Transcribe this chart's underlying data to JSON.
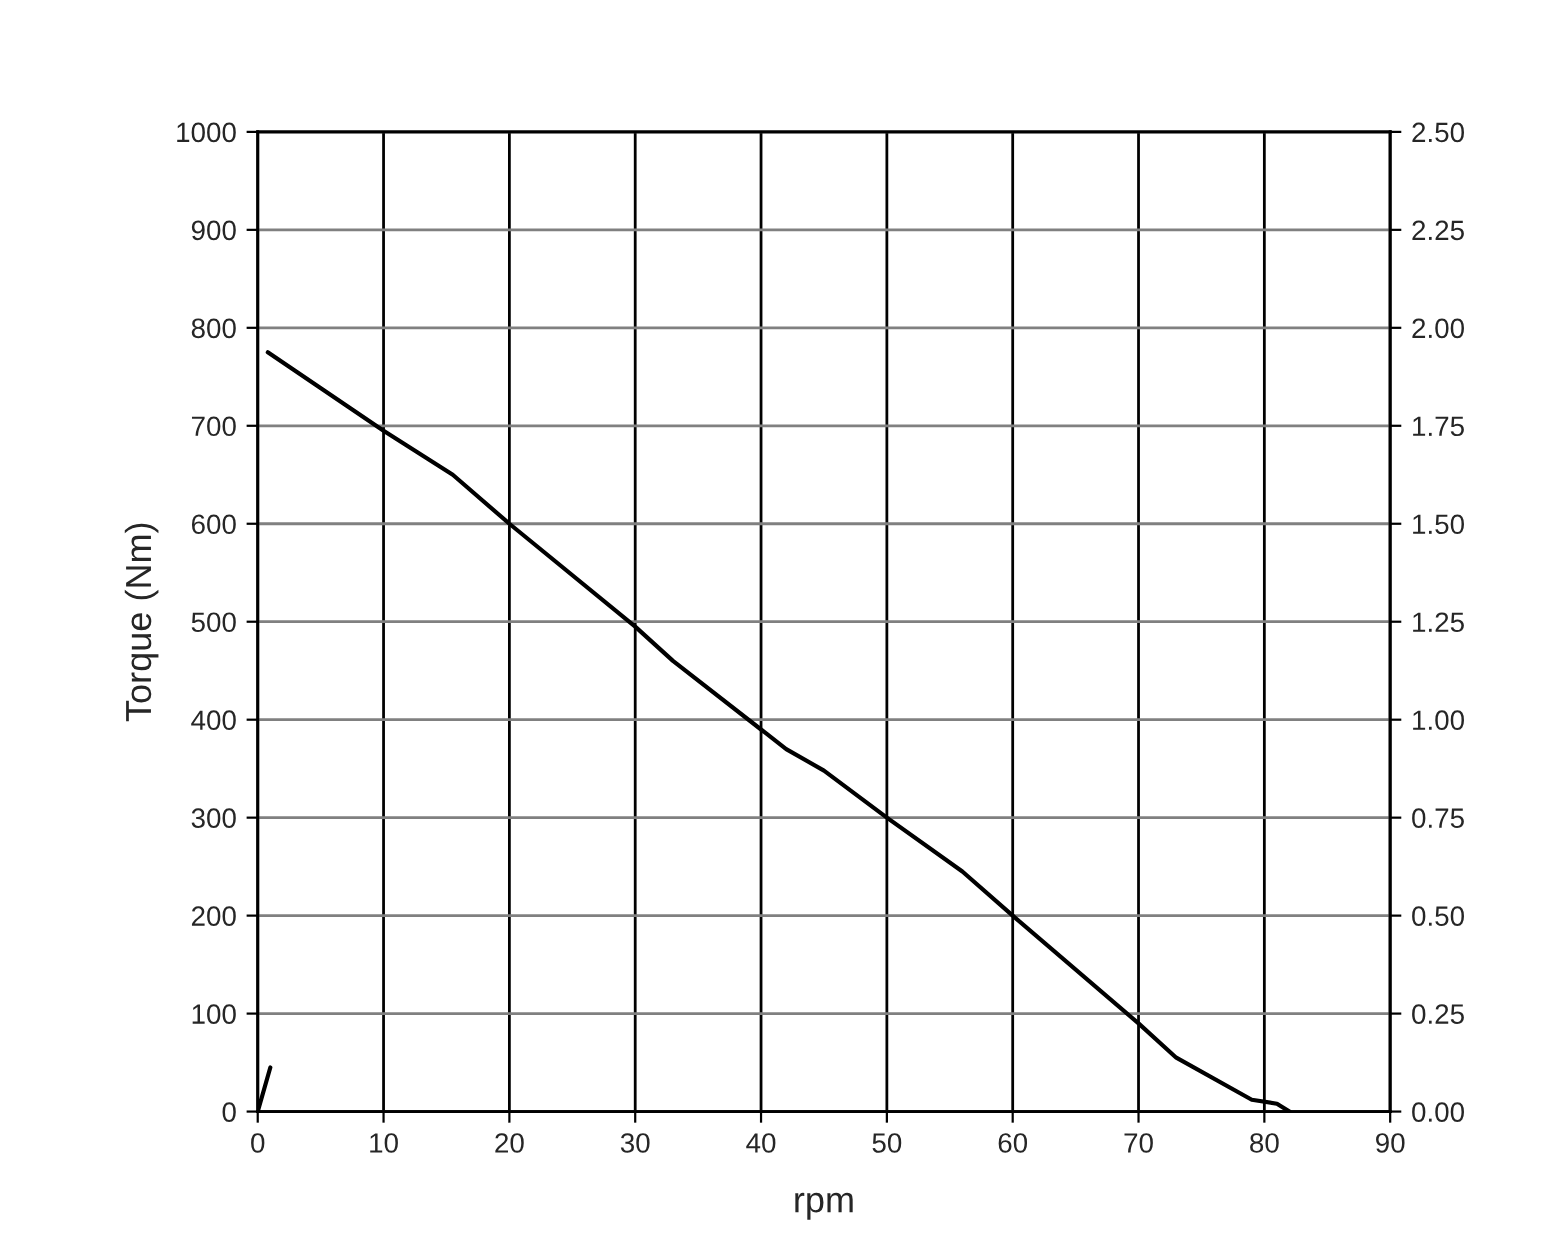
{
  "chart_data": {
    "type": "line",
    "xlabel": "rpm",
    "ylabel": "Torque (Nm)",
    "xlim": [
      0,
      90
    ],
    "xticks": [
      0,
      10,
      20,
      30,
      40,
      50,
      60,
      70,
      80,
      90
    ],
    "ylim": [
      0,
      1000
    ],
    "yticks": [
      0,
      100,
      200,
      300,
      400,
      500,
      600,
      700,
      800,
      900,
      1000
    ],
    "y2lim": [
      0,
      2.5
    ],
    "y2ticks": [
      {
        "value": 0,
        "label": "0.00"
      },
      {
        "value": 0.25,
        "label": "0.25"
      },
      {
        "value": 0.5,
        "label": "0.50"
      },
      {
        "value": 0.75,
        "label": "0.75"
      },
      {
        "value": 1.0,
        "label": "1.00"
      },
      {
        "value": 1.25,
        "label": "1.25"
      },
      {
        "value": 1.5,
        "label": "1.50"
      },
      {
        "value": 1.75,
        "label": "1.75"
      },
      {
        "value": 2.0,
        "label": "2.00"
      },
      {
        "value": 2.25,
        "label": "2.25"
      },
      {
        "value": 2.5,
        "label": "2.50"
      }
    ],
    "grid": true,
    "marker": "none",
    "line_style": "solid",
    "series": [
      {
        "color": "#000000",
        "x": [
          0.8,
          10,
          15.5,
          20,
          30,
          33,
          40,
          42,
          45,
          50,
          56,
          60,
          70,
          73,
          79,
          81,
          82
        ],
        "values": [
          775,
          695,
          650,
          600,
          495,
          460,
          390,
          370,
          348,
          300,
          245,
          200,
          90,
          55,
          12,
          8,
          0
        ]
      },
      {
        "color": "#000000",
        "x": [
          0,
          1
        ],
        "values": [
          0,
          45
        ]
      }
    ]
  }
}
